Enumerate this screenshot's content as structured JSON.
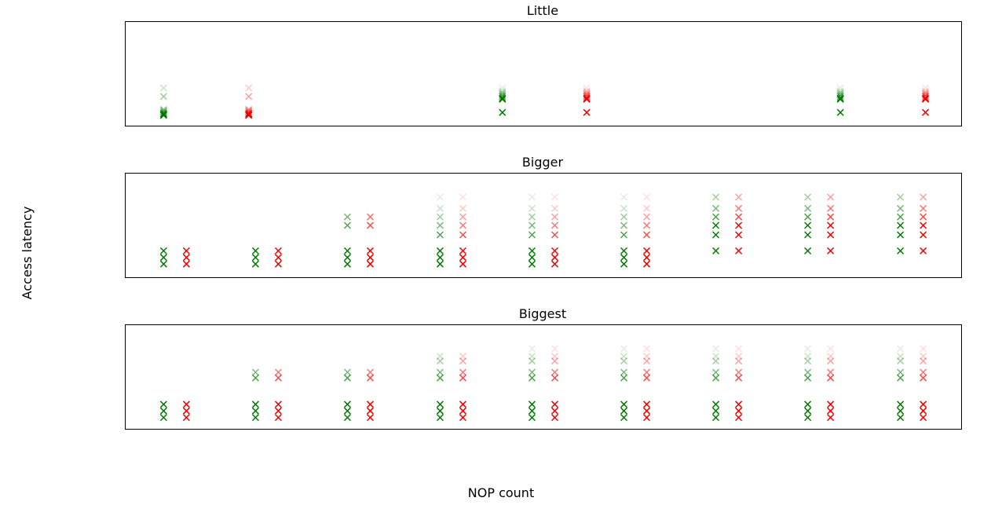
{
  "figure": {
    "ylabel": "Access latency",
    "xlabel": "NOP count"
  },
  "colors": {
    "series_a": "#007a00",
    "series_b": "#f20000"
  },
  "chart_data": [
    {
      "type": "scatter",
      "title": "Little",
      "xlim": [
        0,
        11
      ],
      "ylim": [
        0,
        11
      ],
      "grid": false,
      "x": [
        0.5,
        1.62,
        4.96,
        6.07,
        9.41,
        10.53
      ],
      "series": [
        {
          "values": [
            {
              "x": 0.5,
              "y": [
                1.1,
                1.2,
                1.3,
                1.5,
                1.7,
                3.1,
                4.0
              ]
            },
            {
              "x": 4.96,
              "y": [
                1.4,
                2.8,
                2.9,
                3.1,
                3.3,
                3.5,
                3.7,
                4.0
              ]
            },
            {
              "x": 9.41,
              "y": [
                1.4,
                2.8,
                2.9,
                3.1,
                3.3,
                3.5,
                3.7,
                4.0
              ]
            }
          ]
        },
        {
          "values": [
            {
              "x": 1.62,
              "y": [
                1.1,
                1.2,
                1.3,
                1.5,
                1.7,
                3.1,
                4.0
              ]
            },
            {
              "x": 6.07,
              "y": [
                1.4,
                2.8,
                2.9,
                3.1,
                3.3,
                3.5,
                3.7,
                4.0
              ]
            },
            {
              "x": 10.53,
              "y": [
                1.4,
                2.8,
                2.9,
                3.1,
                3.3,
                3.5,
                3.7,
                4.0
              ]
            }
          ]
        }
      ]
    },
    {
      "type": "scatter",
      "title": "Bigger",
      "xlim": [
        0,
        11
      ],
      "ylim": [
        0,
        11
      ],
      "grid": false,
      "x": [
        0.5,
        0.8,
        1.71,
        2.01,
        2.92,
        3.22,
        4.14,
        4.44,
        5.35,
        5.65,
        6.56,
        6.86,
        7.77,
        8.07,
        8.98,
        9.28,
        10.2,
        10.5
      ],
      "series": [
        {
          "values": [
            {
              "x": 0.5,
              "y": [
                1.4,
                2.1,
                2.8
              ]
            },
            {
              "x": 1.71,
              "y": [
                1.4,
                2.1,
                2.8
              ]
            },
            {
              "x": 2.92,
              "y": [
                1.4,
                2.1,
                2.8,
                5.5,
                6.4
              ]
            },
            {
              "x": 4.14,
              "y": [
                1.4,
                2.1,
                2.8,
                4.5,
                5.5,
                6.4,
                7.3,
                8.5
              ]
            },
            {
              "x": 5.35,
              "y": [
                1.4,
                2.1,
                2.8,
                4.5,
                5.5,
                6.4,
                7.3,
                8.5
              ]
            },
            {
              "x": 6.56,
              "y": [
                1.4,
                2.1,
                2.8,
                4.5,
                5.5,
                6.4,
                7.3,
                8.5
              ]
            },
            {
              "x": 7.77,
              "y": [
                2.8,
                4.5,
                5.5,
                6.4,
                7.3,
                8.5
              ]
            },
            {
              "x": 8.98,
              "y": [
                2.8,
                4.5,
                5.5,
                6.4,
                7.3,
                8.5
              ]
            },
            {
              "x": 10.2,
              "y": [
                2.8,
                4.5,
                5.5,
                6.4,
                7.3,
                8.5
              ]
            }
          ]
        },
        {
          "values": [
            {
              "x": 0.8,
              "y": [
                1.4,
                2.1,
                2.8
              ]
            },
            {
              "x": 2.01,
              "y": [
                1.4,
                2.1,
                2.8
              ]
            },
            {
              "x": 3.22,
              "y": [
                1.4,
                2.1,
                2.8,
                5.5,
                6.4
              ]
            },
            {
              "x": 4.44,
              "y": [
                1.4,
                2.1,
                2.8,
                4.5,
                5.5,
                6.4,
                7.3,
                8.5
              ]
            },
            {
              "x": 5.65,
              "y": [
                1.4,
                2.1,
                2.8,
                4.5,
                5.5,
                6.4,
                7.3,
                8.5
              ]
            },
            {
              "x": 6.86,
              "y": [
                1.4,
                2.1,
                2.8,
                4.5,
                5.5,
                6.4,
                7.3,
                8.5
              ]
            },
            {
              "x": 8.07,
              "y": [
                2.8,
                4.5,
                5.5,
                6.4,
                7.3,
                8.5
              ]
            },
            {
              "x": 9.28,
              "y": [
                2.8,
                4.5,
                5.5,
                6.4,
                7.3,
                8.5
              ]
            },
            {
              "x": 10.5,
              "y": [
                2.8,
                4.5,
                5.5,
                6.4,
                7.3,
                8.5
              ]
            }
          ]
        }
      ]
    },
    {
      "type": "scatter",
      "title": "Biggest",
      "xlim": [
        0,
        11
      ],
      "ylim": [
        0,
        11
      ],
      "grid": false,
      "x": [
        0.5,
        0.8,
        1.71,
        2.01,
        2.92,
        3.22,
        4.14,
        4.44,
        5.35,
        5.65,
        6.56,
        6.86,
        7.77,
        8.07,
        8.98,
        9.28,
        10.2,
        10.5
      ],
      "series": [
        {
          "values": [
            {
              "x": 0.5,
              "y": [
                1.2,
                1.9,
                2.6
              ]
            },
            {
              "x": 1.71,
              "y": [
                1.2,
                1.9,
                2.6,
                5.4,
                6.0
              ]
            },
            {
              "x": 2.92,
              "y": [
                1.2,
                1.9,
                2.6,
                5.4,
                6.0
              ]
            },
            {
              "x": 4.14,
              "y": [
                1.2,
                1.9,
                2.6,
                5.4,
                6.0,
                7.2,
                7.7
              ]
            },
            {
              "x": 5.35,
              "y": [
                1.2,
                1.9,
                2.6,
                5.4,
                6.0,
                7.2,
                7.7,
                8.5
              ]
            },
            {
              "x": 6.56,
              "y": [
                1.2,
                1.9,
                2.6,
                5.4,
                6.0,
                7.2,
                7.7,
                8.5
              ]
            },
            {
              "x": 7.77,
              "y": [
                1.2,
                1.9,
                2.6,
                5.4,
                6.0,
                7.2,
                7.7,
                8.5
              ]
            },
            {
              "x": 8.98,
              "y": [
                1.2,
                1.9,
                2.6,
                5.4,
                6.0,
                7.2,
                7.7,
                8.5
              ]
            },
            {
              "x": 10.2,
              "y": [
                1.2,
                1.9,
                2.6,
                5.4,
                6.0,
                7.2,
                7.7,
                8.5
              ]
            }
          ]
        },
        {
          "values": [
            {
              "x": 0.8,
              "y": [
                1.2,
                1.9,
                2.6
              ]
            },
            {
              "x": 2.01,
              "y": [
                1.2,
                1.9,
                2.6,
                5.4,
                6.0
              ]
            },
            {
              "x": 3.22,
              "y": [
                1.2,
                1.9,
                2.6,
                5.4,
                6.0
              ]
            },
            {
              "x": 4.44,
              "y": [
                1.2,
                1.9,
                2.6,
                5.4,
                6.0,
                7.2,
                7.7
              ]
            },
            {
              "x": 5.65,
              "y": [
                1.2,
                1.9,
                2.6,
                5.4,
                6.0,
                7.2,
                7.7,
                8.5
              ]
            },
            {
              "x": 6.86,
              "y": [
                1.2,
                1.9,
                2.6,
                5.4,
                6.0,
                7.2,
                7.7,
                8.5
              ]
            },
            {
              "x": 8.07,
              "y": [
                1.2,
                1.9,
                2.6,
                5.4,
                6.0,
                7.2,
                7.7,
                8.5
              ]
            },
            {
              "x": 9.28,
              "y": [
                1.2,
                1.9,
                2.6,
                5.4,
                6.0,
                7.2,
                7.7,
                8.5
              ]
            },
            {
              "x": 10.5,
              "y": [
                1.2,
                1.9,
                2.6,
                5.4,
                6.0,
                7.2,
                7.7,
                8.5
              ]
            }
          ]
        }
      ]
    }
  ]
}
